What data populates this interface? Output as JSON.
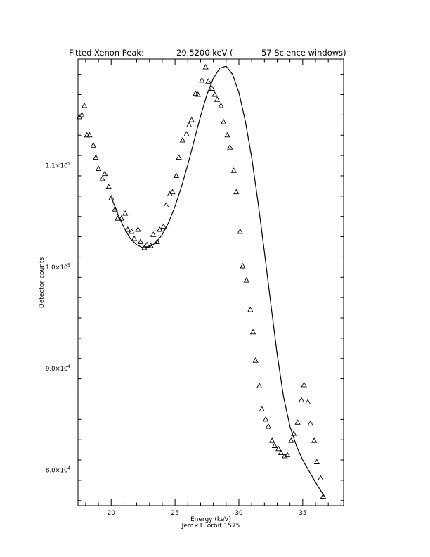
{
  "chart_data": {
    "type": "scatter",
    "title_parts": {
      "label": "Fitted Xenon Peak:",
      "value": "29.5200 keV (",
      "windows": "57 Science windows)"
    },
    "xlabel": "Energy (keV)",
    "subtitle": "Jem×1: orbit 1575",
    "ylabel": "Detector counts",
    "xlim": [
      17.4,
      38.2
    ],
    "ylim": [
      76500,
      120500
    ],
    "xticks": [
      20,
      25,
      30,
      35
    ],
    "xtick_labels": [
      "20",
      "25",
      "30",
      "35"
    ],
    "yticks": [
      80000,
      90000,
      100000,
      110000
    ],
    "ytick_labels": [
      {
        "mant": "8.0×10",
        "exp": "4"
      },
      {
        "mant": "9.0×10",
        "exp": "4"
      },
      {
        "mant": "1.0×10",
        "exp": "5"
      },
      {
        "mant": "1.1×10",
        "exp": "5"
      }
    ],
    "grid": false,
    "marker": "triangle",
    "series": [
      {
        "kind": "points",
        "x": [
          17.5,
          17.7,
          17.9,
          18.1,
          18.3,
          18.6,
          18.8,
          19.0,
          19.3,
          19.5,
          19.8,
          20.0,
          20.3,
          20.5,
          20.8,
          21.1,
          21.3,
          21.6,
          21.8,
          22.1,
          22.3,
          22.6,
          22.8,
          23.1,
          23.3,
          23.6,
          23.8,
          24.1,
          24.3,
          24.6,
          24.8,
          25.1,
          25.3,
          25.6,
          25.9,
          26.1,
          26.3,
          26.6,
          26.8,
          27.1,
          27.4,
          27.6,
          27.9,
          28.1,
          28.3,
          28.6,
          28.8,
          29.1,
          29.3,
          29.6,
          29.8,
          30.1,
          30.3,
          30.6,
          30.9,
          31.1,
          31.3,
          31.6,
          31.8,
          32.1,
          32.3,
          32.6,
          32.8,
          33.1,
          33.3,
          33.6,
          33.8,
          34.1,
          34.3,
          34.6,
          34.9,
          35.1,
          35.4,
          35.6,
          35.9,
          36.1,
          36.4,
          36.6
        ],
        "y": [
          114800,
          115000,
          115900,
          113000,
          113000,
          112000,
          110800,
          109700,
          108700,
          109200,
          107900,
          106800,
          105700,
          104800,
          104800,
          105300,
          103700,
          103500,
          102800,
          103700,
          102500,
          101900,
          102200,
          102100,
          103200,
          102500,
          103700,
          104000,
          106100,
          107200,
          107400,
          109000,
          110800,
          112500,
          113100,
          114000,
          114500,
          117100,
          117000,
          118400,
          119700,
          118300,
          117600,
          117000,
          116500,
          115900,
          114300,
          113000,
          111800,
          109500,
          107400,
          103500,
          100100,
          98700,
          95800,
          93600,
          90800,
          88300,
          86000,
          85000,
          84300,
          82900,
          82400,
          82100,
          81700,
          81400,
          81500,
          82900,
          83600,
          84700,
          86900,
          88400,
          86700,
          84600,
          82900,
          80800,
          79200,
          77400
        ]
      },
      {
        "kind": "fit",
        "x": [
          20.0,
          20.5,
          21.0,
          21.5,
          22.0,
          22.5,
          23.0,
          23.5,
          24.0,
          24.5,
          25.0,
          25.5,
          26.0,
          26.5,
          27.0,
          27.5,
          28.0,
          28.5,
          29.0,
          29.5,
          30.0,
          30.5,
          31.0,
          31.5,
          32.0,
          32.5,
          33.0,
          33.5,
          34.0,
          34.5,
          35.0,
          35.5,
          36.0,
          36.7
        ],
        "y": [
          106900,
          105300,
          103900,
          102800,
          102200,
          101900,
          102000,
          102400,
          103200,
          104400,
          106000,
          107900,
          110100,
          112500,
          114900,
          117000,
          118600,
          119600,
          119800,
          119000,
          117200,
          114400,
          110800,
          106400,
          101500,
          96400,
          91400,
          87200,
          84300,
          82400,
          81000,
          79900,
          78800,
          77400
        ]
      }
    ]
  }
}
